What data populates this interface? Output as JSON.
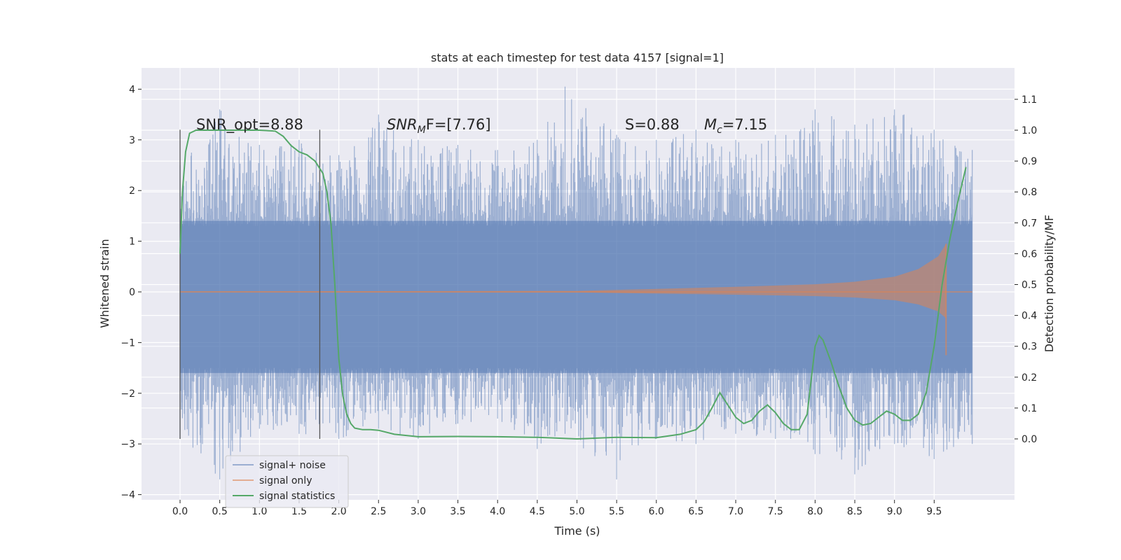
{
  "chart_data": {
    "type": "line",
    "title": "stats at each timestep for test data 4157 [signal=1]",
    "xlabel": "Time (s)",
    "ylabel": "Whitened strain",
    "y2label": "Detection probability/MF",
    "xlim": [
      -0.5,
      10.5
    ],
    "ylim": [
      -4.15,
      4.45
    ],
    "y2lim": [
      -0.195,
      1.195
    ],
    "x_ticks": [
      0.0,
      0.5,
      1.0,
      1.5,
      2.0,
      2.5,
      3.0,
      3.5,
      4.0,
      4.5,
      5.0,
      5.5,
      6.0,
      6.5,
      7.0,
      7.5,
      8.0,
      8.5,
      9.0,
      9.5
    ],
    "x_tick_labels": [
      "0.0",
      "0.5",
      "1.0",
      "1.5",
      "2.0",
      "2.5",
      "3.0",
      "3.5",
      "4.0",
      "4.5",
      "5.0",
      "5.5",
      "6.0",
      "6.5",
      "7.0",
      "7.5",
      "8.0",
      "8.5",
      "9.0",
      "9.5"
    ],
    "y_ticks": [
      -4,
      -3,
      -2,
      -1,
      0,
      1,
      2,
      3,
      4
    ],
    "y_tick_labels": [
      "−4",
      "−3",
      "−2",
      "−1",
      "0",
      "1",
      "2",
      "3",
      "4"
    ],
    "y2_ticks": [
      0.0,
      0.1,
      0.2,
      0.3,
      0.4,
      0.5,
      0.6,
      0.7,
      0.8,
      0.9,
      1.0,
      1.1
    ],
    "y2_tick_labels": [
      "0.0",
      "0.1",
      "0.2",
      "0.3",
      "0.4",
      "0.5",
      "0.6",
      "0.7",
      "0.8",
      "0.9",
      "1.0",
      "1.1"
    ],
    "grid": true,
    "legend_position": "lower-left",
    "series": [
      {
        "name": "signal+ noise",
        "axis": "left",
        "color": "#4c72b0",
        "x_range": [
          0.0,
          9.98
        ],
        "band_values": [
          {
            "x": 0.0,
            "upper": 2.5,
            "lower": -2.9
          },
          {
            "x": 0.5,
            "upper": 3.6,
            "lower": -3.7
          },
          {
            "x": 1.0,
            "upper": 2.9,
            "lower": -2.7
          },
          {
            "x": 1.5,
            "upper": 3.0,
            "lower": -2.8
          },
          {
            "x": 2.0,
            "upper": 2.7,
            "lower": -2.9
          },
          {
            "x": 2.5,
            "upper": 3.5,
            "lower": -2.7
          },
          {
            "x": 3.0,
            "upper": 3.0,
            "lower": -2.9
          },
          {
            "x": 3.5,
            "upper": 2.9,
            "lower": -2.6
          },
          {
            "x": 4.0,
            "upper": 2.8,
            "lower": -2.5
          },
          {
            "x": 4.5,
            "upper": 3.0,
            "lower": -3.1
          },
          {
            "x": 4.85,
            "upper": 4.05,
            "lower": -2.8
          },
          {
            "x": 5.5,
            "upper": 3.1,
            "lower": -3.7
          },
          {
            "x": 6.0,
            "upper": 3.0,
            "lower": -2.9
          },
          {
            "x": 6.5,
            "upper": 3.2,
            "lower": -3.0
          },
          {
            "x": 7.0,
            "upper": 3.0,
            "lower": -2.8
          },
          {
            "x": 7.5,
            "upper": 3.1,
            "lower": -2.9
          },
          {
            "x": 8.0,
            "upper": 3.6,
            "lower": -3.2
          },
          {
            "x": 8.5,
            "upper": 3.3,
            "lower": -3.6
          },
          {
            "x": 9.0,
            "upper": 3.6,
            "lower": -3.0
          },
          {
            "x": 9.5,
            "upper": 3.2,
            "lower": -3.3
          },
          {
            "x": 9.98,
            "upper": 2.8,
            "lower": -3.0
          }
        ]
      },
      {
        "name": "signal only",
        "axis": "left",
        "color": "#dd8452",
        "envelope": [
          {
            "x": 0.0,
            "amp": 0.01
          },
          {
            "x": 5.0,
            "amp": 0.02
          },
          {
            "x": 6.0,
            "amp": 0.06
          },
          {
            "x": 7.0,
            "amp": 0.1
          },
          {
            "x": 8.0,
            "amp": 0.15
          },
          {
            "x": 8.5,
            "amp": 0.2
          },
          {
            "x": 9.0,
            "amp": 0.3
          },
          {
            "x": 9.3,
            "amp": 0.45
          },
          {
            "x": 9.55,
            "amp": 0.7
          },
          {
            "x": 9.65,
            "amp": 0.95
          }
        ],
        "peak": {
          "x": 9.65,
          "max": 0.95,
          "min": -1.25
        },
        "x_end": 9.98
      },
      {
        "name": "signal statistics",
        "axis": "right",
        "color": "#55a868",
        "x": [
          0.0,
          0.03,
          0.07,
          0.12,
          0.2,
          0.3,
          0.5,
          0.8,
          1.0,
          1.2,
          1.3,
          1.4,
          1.5,
          1.6,
          1.7,
          1.8,
          1.85,
          1.9,
          1.95,
          2.0,
          2.05,
          2.1,
          2.15,
          2.2,
          2.3,
          2.4,
          2.5,
          2.7,
          3.0,
          3.5,
          4.0,
          4.5,
          5.0,
          5.5,
          6.0,
          6.3,
          6.5,
          6.6,
          6.7,
          6.8,
          6.9,
          7.0,
          7.1,
          7.2,
          7.3,
          7.4,
          7.5,
          7.6,
          7.7,
          7.8,
          7.9,
          8.0,
          8.05,
          8.1,
          8.2,
          8.3,
          8.4,
          8.5,
          8.6,
          8.7,
          8.8,
          8.9,
          9.0,
          9.1,
          9.2,
          9.3,
          9.4,
          9.5,
          9.6,
          9.7,
          9.8,
          9.9
        ],
        "values": [
          0.6,
          0.8,
          0.93,
          0.99,
          1.0,
          1.0,
          1.0,
          1.0,
          1.0,
          0.997,
          0.98,
          0.95,
          0.93,
          0.92,
          0.9,
          0.86,
          0.8,
          0.7,
          0.5,
          0.26,
          0.14,
          0.08,
          0.05,
          0.035,
          0.03,
          0.03,
          0.028,
          0.015,
          0.007,
          0.008,
          0.007,
          0.005,
          0.0,
          0.005,
          0.004,
          0.015,
          0.03,
          0.055,
          0.1,
          0.15,
          0.11,
          0.07,
          0.05,
          0.06,
          0.09,
          0.11,
          0.085,
          0.05,
          0.03,
          0.03,
          0.08,
          0.3,
          0.335,
          0.32,
          0.25,
          0.17,
          0.1,
          0.06,
          0.045,
          0.05,
          0.07,
          0.09,
          0.08,
          0.06,
          0.06,
          0.08,
          0.15,
          0.3,
          0.5,
          0.65,
          0.77,
          0.88
        ]
      }
    ],
    "vlines": [
      {
        "x": 0.0,
        "y_top": 3.2,
        "y_bottom": -2.9
      },
      {
        "x": 1.76,
        "y_top": 3.2,
        "y_bottom": -2.9
      }
    ],
    "annotations": [
      {
        "text": "SNR_opt=8.88",
        "italic": false
      },
      {
        "text_main": "SNR",
        "text_sub": "M",
        "text_rest": "F=[7.76]",
        "italic": true
      },
      {
        "text": "S=0.88",
        "italic": true
      },
      {
        "text_main": "M",
        "text_sub": "c",
        "text_rest": "=7.15",
        "italic": true
      }
    ],
    "legend": [
      "signal+ noise",
      "signal only",
      "signal statistics"
    ]
  }
}
